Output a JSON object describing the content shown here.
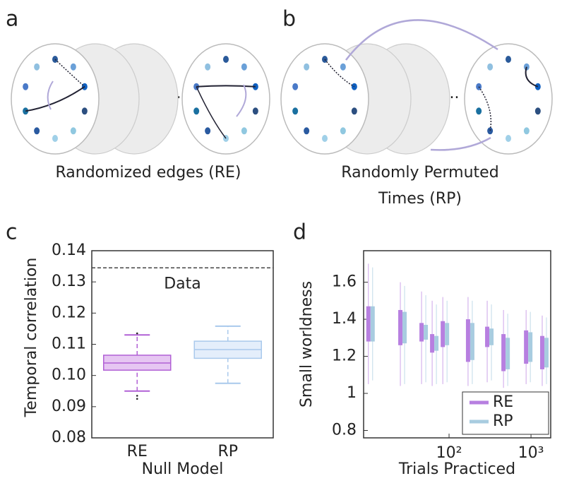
{
  "panels": {
    "a": {
      "label": "a",
      "caption": "Randomized edges (RE)",
      "ellipsis": "..."
    },
    "b": {
      "label": "b",
      "caption_lines": [
        "Randomly Permuted",
        "Times (RP)"
      ],
      "ellipsis": "..."
    },
    "c": {
      "label": "c"
    },
    "d": {
      "label": "d"
    }
  },
  "chart_data": [
    {
      "type": "box",
      "categories": [
        "RE",
        "RP"
      ],
      "xlabel": "Null Model",
      "ylabel": "Temporal correlation",
      "boxes": [
        {
          "whislo": 0.095,
          "q1": 0.1017,
          "med": 0.104,
          "q3": 0.1065,
          "whishi": 0.113,
          "fliers": [
            0.0925,
            0.0935,
            0.1135
          ],
          "color": "#b160d5",
          "fill": "#e6c6f2"
        },
        {
          "whislo": 0.0975,
          "q1": 0.1055,
          "med": 0.1083,
          "q3": 0.111,
          "whishi": 0.1158,
          "fliers": [],
          "color": "#a9c9ec",
          "fill": "#e4eefb"
        }
      ],
      "reference": {
        "value": 0.1345,
        "label": "Data"
      },
      "ylim": [
        0.08,
        0.14
      ],
      "yticks": [
        0.08,
        0.09,
        {
          "value": 0.1,
          "label": "0.10"
        },
        0.11,
        0.12,
        0.13,
        0.14
      ]
    },
    {
      "type": "range-box",
      "xlabel": "Trials Practiced",
      "ylabel": "Small worldness",
      "xscale": "log",
      "legend": "lower right",
      "xlim": [
        9.06,
        1740
      ],
      "xticks": [
        {
          "value": 100,
          "label": "10²"
        },
        {
          "value": 1000,
          "label": "10³"
        }
      ],
      "ylim": [
        0.76,
        1.77
      ],
      "yticks": [
        0.8,
        1,
        1.2,
        1.4,
        1.6
      ],
      "x": [
        11,
        27,
        49,
        66,
        89,
        181,
        310,
        490,
        925,
        1455
      ],
      "series": [
        {
          "name": "RE",
          "color": "#b77fe0",
          "q1": [
            1.28,
            1.26,
            1.28,
            1.22,
            1.25,
            1.17,
            1.25,
            1.12,
            1.16,
            1.13
          ],
          "q3": [
            1.47,
            1.45,
            1.38,
            1.32,
            1.39,
            1.4,
            1.36,
            1.32,
            1.34,
            1.31
          ],
          "whislo": [
            1.05,
            1.04,
            1.05,
            1.04,
            1.05,
            1.04,
            1.06,
            1.03,
            1.05,
            1.04
          ],
          "whishi": [
            1.7,
            1.6,
            1.55,
            1.5,
            1.52,
            1.52,
            1.5,
            1.45,
            1.45,
            1.42
          ]
        },
        {
          "name": "RP",
          "color": "#a8cce0",
          "q1": [
            1.28,
            1.27,
            1.29,
            1.23,
            1.26,
            1.18,
            1.26,
            1.13,
            1.17,
            1.14
          ],
          "q3": [
            1.47,
            1.44,
            1.37,
            1.31,
            1.38,
            1.38,
            1.35,
            1.3,
            1.33,
            1.3
          ],
          "whislo": [
            1.07,
            1.05,
            1.06,
            1.05,
            1.06,
            1.05,
            1.07,
            1.04,
            1.06,
            1.05
          ],
          "whishi": [
            1.68,
            1.58,
            1.53,
            1.48,
            1.5,
            1.5,
            1.48,
            1.43,
            1.44,
            1.41
          ]
        }
      ]
    }
  ]
}
